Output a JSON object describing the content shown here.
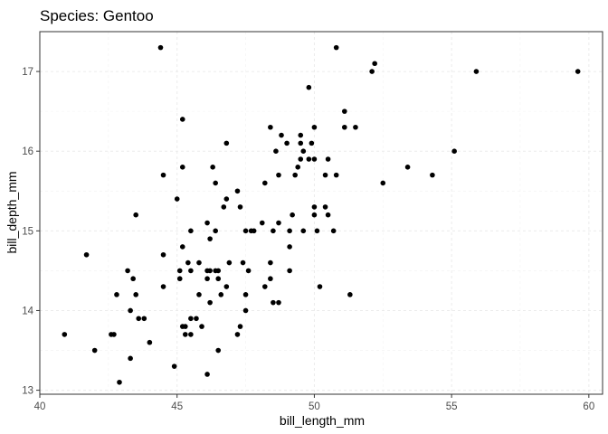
{
  "chart_data": {
    "type": "scatter",
    "title": "Species: Gentoo",
    "xlabel": "bill_length_mm",
    "ylabel": "bill_depth_mm",
    "xlim": [
      40.0,
      60.5
    ],
    "ylim": [
      12.95,
      17.5
    ],
    "x_ticks": [
      40,
      45,
      50,
      55,
      60
    ],
    "y_ticks": [
      13,
      14,
      15,
      16,
      17
    ],
    "x_tick_labels": [
      "40",
      "45",
      "50",
      "55",
      "60"
    ],
    "y_tick_labels": [
      "13",
      "14",
      "15",
      "16",
      "17"
    ],
    "grid": true,
    "point_color": "#000000",
    "points": [
      [
        40.9,
        13.7
      ],
      [
        41.7,
        14.7
      ],
      [
        42.0,
        13.5
      ],
      [
        42.6,
        13.7
      ],
      [
        42.7,
        13.7
      ],
      [
        42.8,
        14.2
      ],
      [
        42.9,
        13.1
      ],
      [
        43.2,
        14.5
      ],
      [
        43.3,
        14.0
      ],
      [
        43.3,
        13.4
      ],
      [
        43.4,
        14.4
      ],
      [
        43.5,
        14.2
      ],
      [
        43.5,
        15.2
      ],
      [
        43.6,
        13.9
      ],
      [
        43.8,
        13.9
      ],
      [
        44.0,
        13.6
      ],
      [
        44.4,
        17.3
      ],
      [
        44.5,
        14.3
      ],
      [
        44.5,
        15.7
      ],
      [
        44.5,
        14.7
      ],
      [
        44.9,
        13.3
      ],
      [
        45.0,
        15.4
      ],
      [
        45.1,
        14.5
      ],
      [
        45.1,
        14.4
      ],
      [
        45.2,
        15.8
      ],
      [
        45.2,
        16.4
      ],
      [
        45.2,
        14.8
      ],
      [
        45.2,
        13.8
      ],
      [
        45.3,
        13.8
      ],
      [
        45.3,
        13.7
      ],
      [
        45.4,
        14.6
      ],
      [
        45.5,
        15.0
      ],
      [
        45.5,
        14.5
      ],
      [
        45.5,
        13.7
      ],
      [
        45.5,
        13.9
      ],
      [
        45.7,
        13.9
      ],
      [
        45.8,
        14.6
      ],
      [
        45.8,
        14.2
      ],
      [
        45.9,
        13.8
      ],
      [
        46.1,
        15.1
      ],
      [
        46.1,
        14.5
      ],
      [
        46.1,
        14.4
      ],
      [
        46.1,
        13.2
      ],
      [
        46.2,
        14.5
      ],
      [
        46.2,
        14.9
      ],
      [
        46.2,
        14.1
      ],
      [
        46.3,
        15.8
      ],
      [
        46.4,
        15.0
      ],
      [
        46.4,
        15.6
      ],
      [
        46.4,
        14.5
      ],
      [
        46.5,
        14.5
      ],
      [
        46.5,
        14.4
      ],
      [
        46.5,
        13.5
      ],
      [
        46.6,
        14.2
      ],
      [
        46.7,
        15.3
      ],
      [
        46.8,
        15.4
      ],
      [
        46.8,
        14.3
      ],
      [
        46.8,
        16.1
      ],
      [
        46.9,
        14.6
      ],
      [
        47.2,
        15.5
      ],
      [
        47.2,
        13.7
      ],
      [
        47.3,
        15.3
      ],
      [
        47.3,
        13.8
      ],
      [
        47.4,
        14.6
      ],
      [
        47.5,
        14.2
      ],
      [
        47.5,
        14.0
      ],
      [
        47.5,
        15.0
      ],
      [
        47.6,
        14.5
      ],
      [
        47.7,
        15.0
      ],
      [
        47.8,
        15.0
      ],
      [
        48.1,
        15.1
      ],
      [
        48.2,
        15.6
      ],
      [
        48.2,
        14.3
      ],
      [
        48.4,
        14.6
      ],
      [
        48.4,
        16.3
      ],
      [
        48.4,
        14.4
      ],
      [
        48.5,
        15.0
      ],
      [
        48.5,
        14.1
      ],
      [
        48.6,
        16.0
      ],
      [
        48.7,
        15.1
      ],
      [
        48.7,
        14.1
      ],
      [
        48.7,
        15.7
      ],
      [
        48.8,
        16.2
      ],
      [
        49.0,
        16.1
      ],
      [
        49.1,
        14.5
      ],
      [
        49.1,
        15.0
      ],
      [
        49.1,
        14.8
      ],
      [
        49.2,
        15.2
      ],
      [
        49.3,
        15.7
      ],
      [
        49.4,
        15.8
      ],
      [
        49.5,
        16.2
      ],
      [
        49.5,
        16.1
      ],
      [
        49.5,
        15.9
      ],
      [
        49.6,
        16.0
      ],
      [
        49.6,
        15.0
      ],
      [
        49.8,
        15.9
      ],
      [
        49.8,
        16.8
      ],
      [
        49.9,
        16.1
      ],
      [
        50.0,
        16.3
      ],
      [
        50.0,
        15.2
      ],
      [
        50.0,
        15.9
      ],
      [
        50.0,
        15.3
      ],
      [
        50.1,
        15.0
      ],
      [
        50.2,
        14.3
      ],
      [
        50.4,
        15.3
      ],
      [
        50.4,
        15.7
      ],
      [
        50.5,
        15.9
      ],
      [
        50.5,
        15.2
      ],
      [
        50.7,
        15.0
      ],
      [
        50.8,
        15.7
      ],
      [
        50.8,
        17.3
      ],
      [
        51.1,
        16.5
      ],
      [
        51.1,
        16.3
      ],
      [
        51.3,
        14.2
      ],
      [
        51.5,
        16.3
      ],
      [
        52.1,
        17.0
      ],
      [
        52.2,
        17.1
      ],
      [
        52.5,
        15.6
      ],
      [
        53.4,
        15.8
      ],
      [
        54.3,
        15.7
      ],
      [
        55.1,
        16.0
      ],
      [
        55.9,
        17.0
      ],
      [
        59.6,
        17.0
      ]
    ]
  }
}
